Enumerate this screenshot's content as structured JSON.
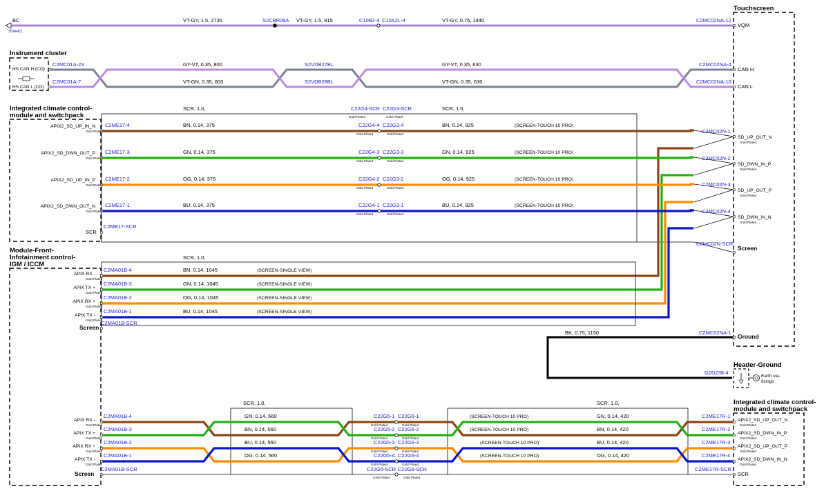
{
  "top_wire": {
    "left_label": "BC",
    "sheet_link": "Sheet1",
    "seg1_label": "VT-GY,  1.5,  2735",
    "splice_label": "S2CBR09A",
    "seg2_label": "VT-GY,  1.5,  915",
    "conn_a": "C10B2-4",
    "conn_b": "C10A2L-4",
    "seg3_label": "VT-GY,  0.75,  1440",
    "end_conn": "C2MC02NA-12",
    "end_pin": "VQM"
  },
  "modules": {
    "touchscreen": "Touchscreen",
    "instrument_cluster": "Instrument cluster",
    "climate_top_line1": "Integrated climate control-",
    "climate_top_line2": "module and switchpack",
    "ifm_line1": "Module-Front-",
    "ifm_line2": "Infotainment control-",
    "ifm_line3": "IGM / ICCM",
    "header_ground": "Header-Ground",
    "earth_line1": "Earth via-",
    "earth_line2": "fixings",
    "climate_bot_line1": "Integrated climate control-",
    "climate_bot_line2": "module and switchpack"
  },
  "can": {
    "pin_h": "HS CAN H (CO)",
    "pin_l": "HS CAN L (CO)",
    "conn_h": "C2MC01A-23",
    "conn_l": "C2MC01A-7",
    "wire_h1": "GY-VT,  0.35,  800",
    "wire_l1": "VT-GN,  0.35,  800",
    "splice_h": "S2VDB27BL",
    "splice_l": "S2VDB28BL",
    "wire_h2": "GY-VT,  0.35,  630",
    "wire_l2": "VT-GN,  0.35,  630",
    "end_conn_h": "C2MC02NA-4",
    "end_conn_l": "C2MC02NA-10",
    "end_pin_h": "CAN H",
    "end_pin_l": "CAN L"
  },
  "climate_section": {
    "scr_label": "SCR,  1.0,",
    "scr_label2": "SCR,  1.0,",
    "inline_scr_a": "C22G4-SCR",
    "inline_scr_b": "C22G3-SCR",
    "scr_pin": "SCR",
    "scr_conn": "C2ME17-SCR",
    "gold": "Gold Plated",
    "rows": [
      {
        "pin": "APIX2_SD_UP_IN_N",
        "conn": "C2ME17-4",
        "w1": "BN,  0.14,  375",
        "ia": "C22G4-4",
        "ib": "C22G3-4",
        "w2": "BN,  0.14,  925",
        "note": "(SCREEN-TOUCH 10 PRO)",
        "end_conn": "C2MC02N-1",
        "end_pin": "SD_UP_OUT_N",
        "color": "#8b4513"
      },
      {
        "pin": "APIX2_SD_DWN_OUT_P",
        "conn": "C2ME17-3",
        "w1": "GN,  0.14,  375",
        "ia": "C22G4-3",
        "ib": "C22G3-3",
        "w2": "GN,  0.14,  925",
        "note": "(SCREEN-TOUCH 10 PRO)",
        "end_conn": "C2MC02N-2",
        "end_pin": "SD_DWN_IN_P",
        "color": "#22b014"
      },
      {
        "pin": "APIX2_SD_UP_IN_P",
        "conn": "C2ME17-2",
        "w1": "OG,  0.14,  375",
        "ia": "C22G4-2",
        "ib": "C22G3-2",
        "w2": "OG,  0.14,  925",
        "note": "(SCREEN-TOUCH 10 PRO)",
        "end_conn": "C2MC02N-3",
        "end_pin": "SD_UP_OUT_P",
        "color": "#ff8c00"
      },
      {
        "pin": "APIX2_SD_DWN_OUT_N",
        "conn": "C2ME17-1",
        "w1": "BU,  0.14,  375",
        "ia": "C22G4-1",
        "ib": "C22G3-1",
        "w2": "BU,  0.14,  925",
        "note": "(SCREEN-TOUCH 10 PRO)",
        "end_conn": "C2MC02N-4",
        "end_pin": "SD_DWN_IN_N",
        "color": "#0a14c8"
      }
    ],
    "screen_conn": "C2MC02N-SCR",
    "screen_pin": "Screen"
  },
  "ifm_section": {
    "scr_label": "SCR,  1.0,",
    "screen_pin": "Screen",
    "screen_conn": "C2MA01B-SCR",
    "gold": "Gold Plated",
    "rows": [
      {
        "pin": "APIX RX -",
        "conn": "C2MA01B-4",
        "w": "BN,  0.14,  1045",
        "note": "(SCREEN-SINGLE VIEW)",
        "color": "#8b4513"
      },
      {
        "pin": "APIX TX +",
        "conn": "C2MA01B-3",
        "w": "GN,  0.14,  1045",
        "note": "(SCREEN-SINGLE VIEW)",
        "color": "#22b014"
      },
      {
        "pin": "APIX RX +",
        "conn": "C2MA01B-2",
        "w": "OG,  0.14,  1045",
        "note": "(SCREEN-SINGLE VIEW)",
        "color": "#ff8c00"
      },
      {
        "pin": "APIX TX -",
        "conn": "C2MA01B-1",
        "w": "BU,  0.14,  1045",
        "note": "(SCREEN-SINGLE VIEW)",
        "color": "#0a14c8"
      }
    ]
  },
  "ground": {
    "wire": "BK,  0.75,  1150",
    "conn": "C2MC02NA-1",
    "pin": "Ground",
    "earth_conn": "G2D238-4"
  },
  "bottom_section": {
    "scr1": "SCR,  1.0,",
    "scr2": "SCR,  1.0,",
    "screen_pin": "Screen",
    "left_scr_conn": "C2MA01B-SCR",
    "ia_scr": "C22G5-SCR",
    "ib_scr": "C22G6-SCR",
    "right_scr_conn": "C2ME17R-SCR",
    "right_scr_pin": "SCR",
    "gold": "Gold Plated",
    "rows": [
      {
        "pin": "APIX RX -",
        "conn": "C2MA01B-4",
        "w1": "GN,  0.14,  560",
        "ia": "C22G5-1",
        "ib": "C22G6-1",
        "note": "(SCREEN-TOUCH 10 PRO)",
        "w2": "GN,  0.14,  420",
        "end_conn": "C2ME17R-1",
        "end_pin": "APIX2_SD_UP_OUT_N"
      },
      {
        "pin": "APIX TX +",
        "conn": "C2MA01B-3",
        "w1": "BN,  0.14,  560",
        "ia": "C22G5-2",
        "ib": "C22G6-2",
        "note": "(SCREEN-TOUCH 10 PRO)",
        "w2": "BN,  0.14,  420",
        "end_conn": "C2ME17R-2",
        "end_pin": "APIX2_SD_DWN_IN_P"
      },
      {
        "pin": "APIX RX +",
        "conn": "C2MA01B-2",
        "w1": "BU,  0.14,  560",
        "ia": "C22G5-3",
        "ib": "C22G6-3",
        "note": "(SCREEN-TOUCH 10 PRO)",
        "w2": "BU,  0.14,  420",
        "end_conn": "C2ME17R-3",
        "end_pin": "APIX2_SD_UP_OUT_P"
      },
      {
        "pin": "APIX TX -",
        "conn": "C2MA01B-1",
        "w1": "OG,  0.14,  560",
        "ia": "C22G5-4",
        "ib": "C22G6-4",
        "note": "(SCREEN-TOUCH 10 PRO)",
        "w2": "OG,  0.14,  420",
        "end_conn": "C2ME17R-4",
        "end_pin": "APIX2_SD_DWN_IN_N"
      }
    ]
  },
  "colors": {
    "brown": "#8b4513",
    "green": "#22b014",
    "orange": "#ff8c00",
    "blue": "#0a14c8",
    "violet": "#b98be0",
    "grey": "#7a7f96",
    "label_blue": "#1a1ad0"
  }
}
